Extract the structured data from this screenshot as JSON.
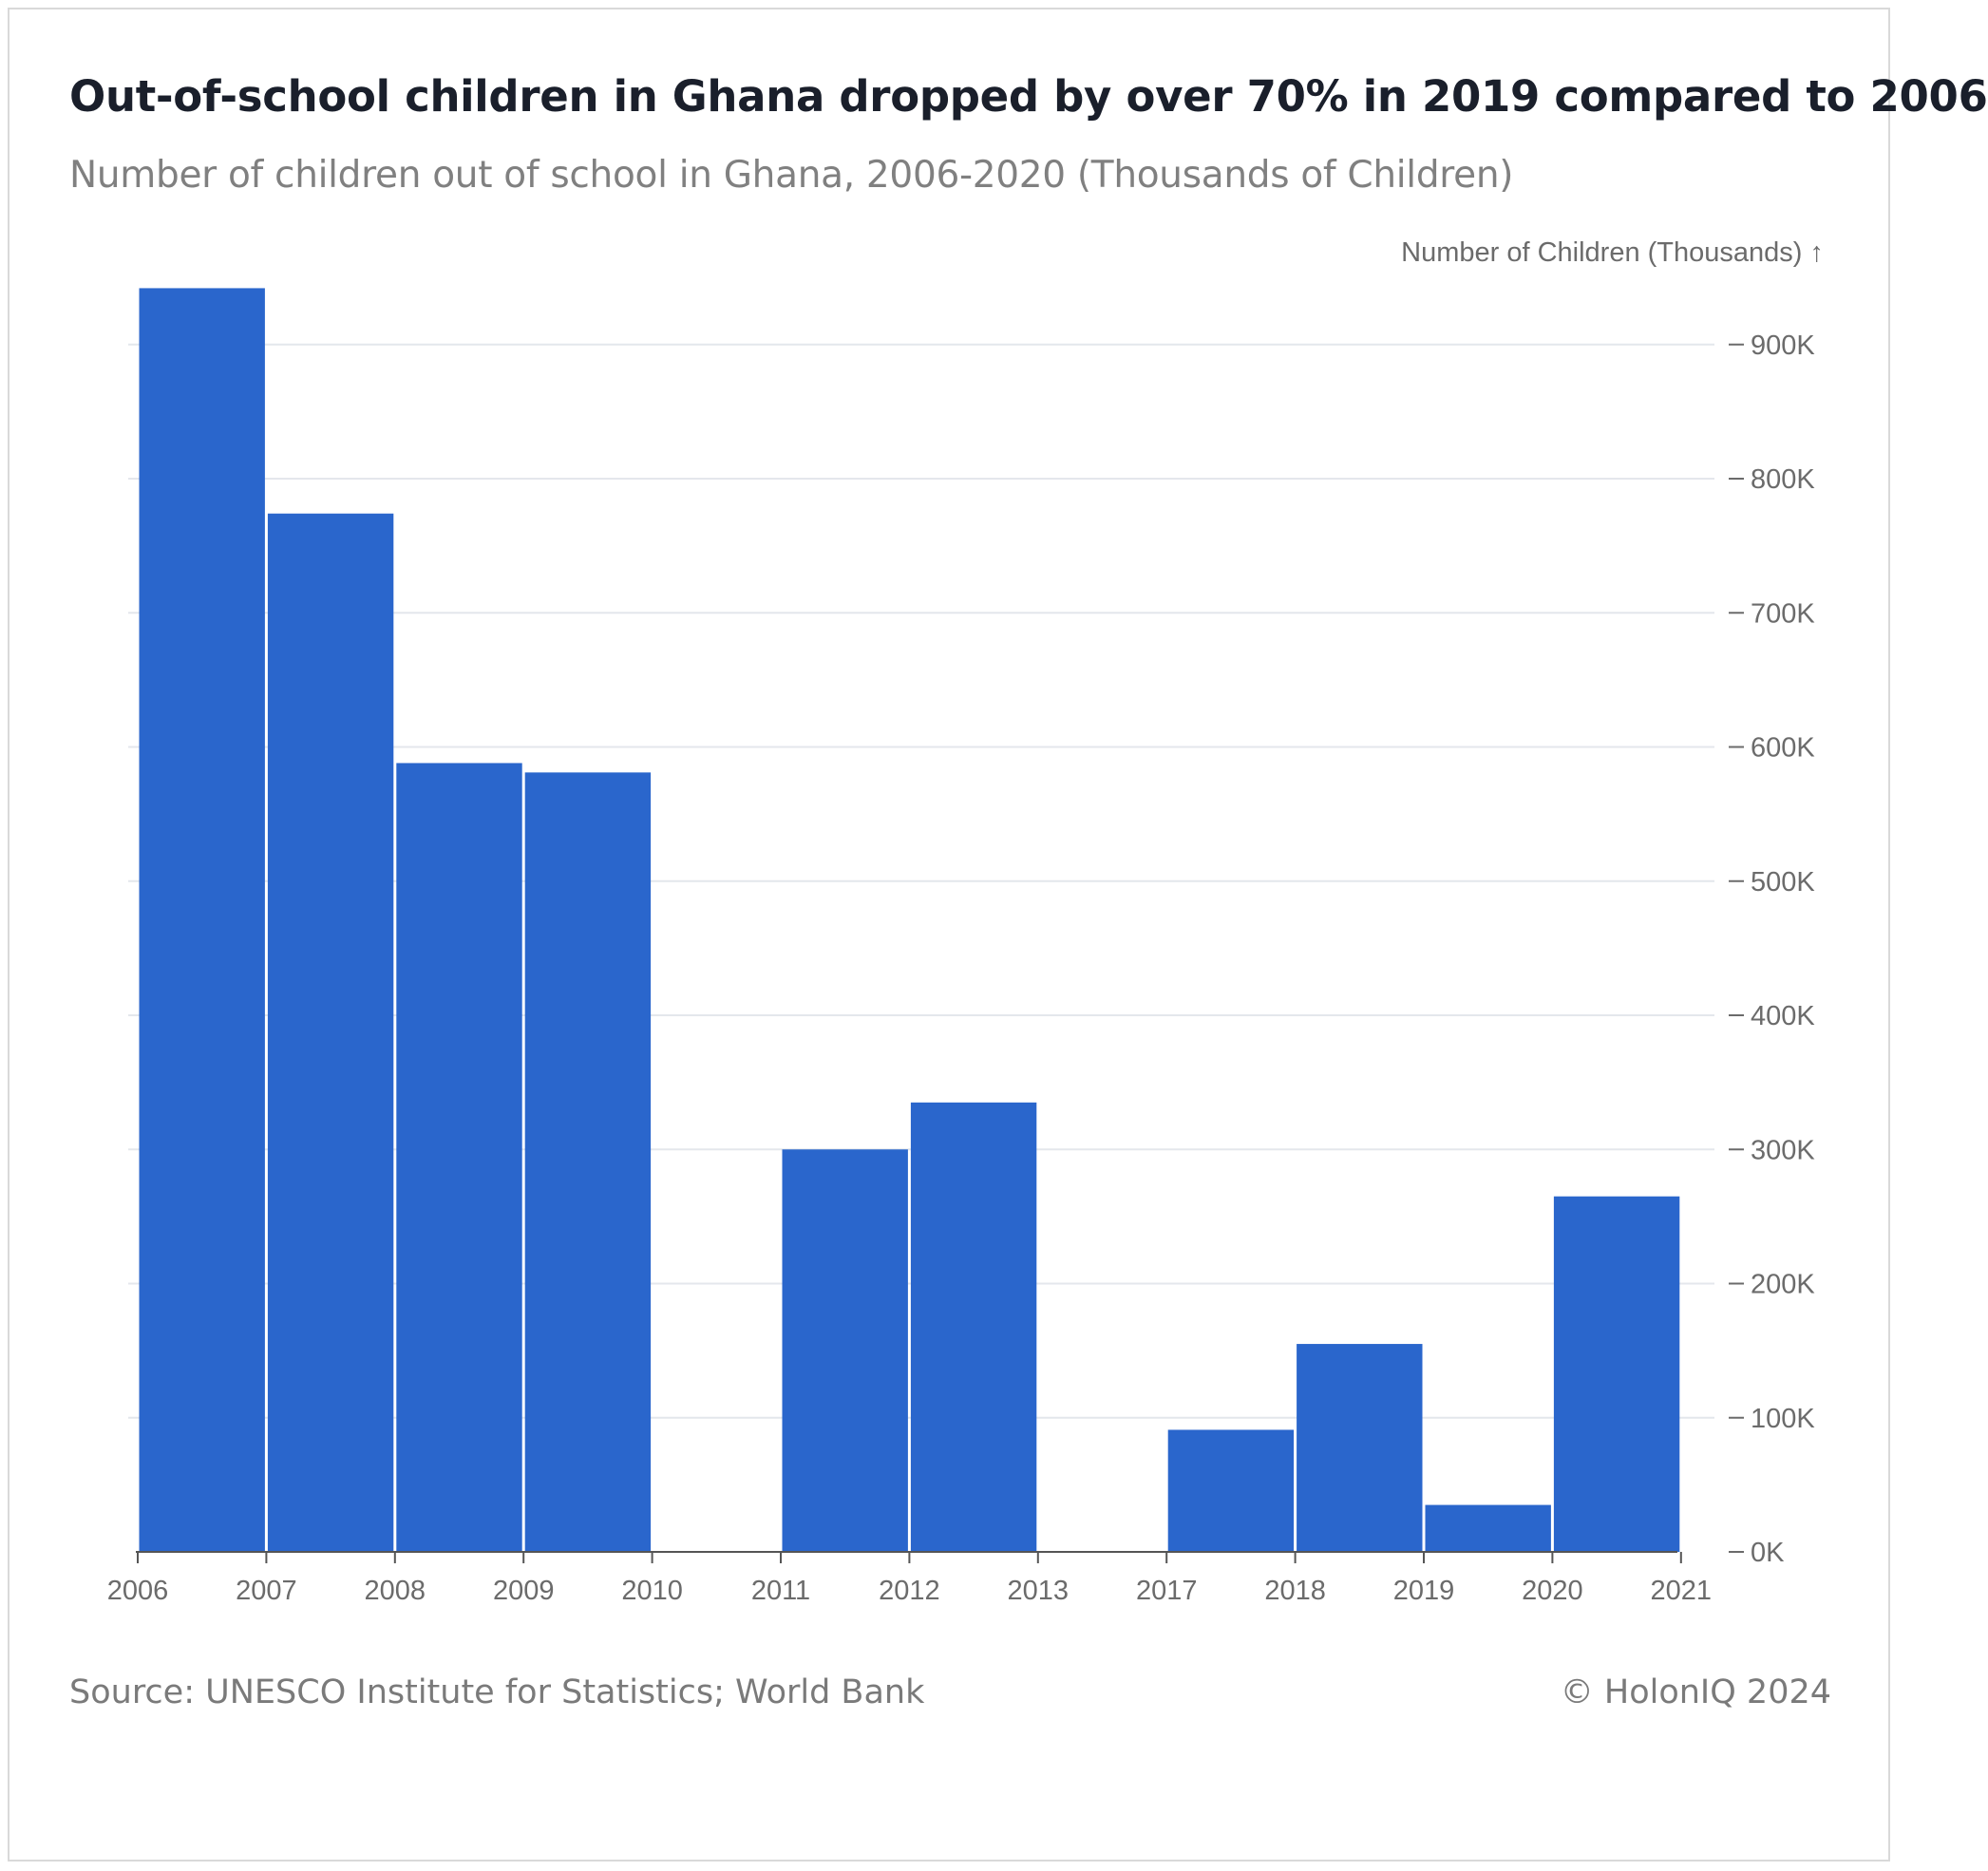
{
  "header": {
    "title": "Out-of-school children in Ghana dropped by over 70% in 2019 compared to 2006",
    "subtitle": "Number of children out of school in Ghana, 2006-2020 (Thousands of Children)"
  },
  "footer": {
    "source": "Source: UNESCO Institute for Statistics; World Bank",
    "copyright": "© HolonIQ 2024"
  },
  "chart_data": {
    "type": "bar",
    "title": "Out-of-school children in Ghana dropped by over 70% in 2019 compared to 2006",
    "subtitle": "Number of children out of school in Ghana, 2006-2020 (Thousands of Children)",
    "ylabel": "Number of Children (Thousands) ↑",
    "xlabel": "",
    "x_tick_labels": [
      "2006",
      "2007",
      "2008",
      "2009",
      "2010",
      "2011",
      "2012",
      "2013",
      "2017",
      "2018",
      "2019",
      "2020",
      "2021"
    ],
    "y_tick_labels": [
      "0K",
      "100K",
      "200K",
      "300K",
      "400K",
      "500K",
      "600K",
      "700K",
      "800K",
      "900K"
    ],
    "ylim": [
      0,
      950
    ],
    "y_axis_position": "right",
    "grid": true,
    "bar_color": "#2a66cc",
    "bars": [
      {
        "start": "2006",
        "end": "2007",
        "value": 942
      },
      {
        "start": "2007",
        "end": "2008",
        "value": 774
      },
      {
        "start": "2008",
        "end": "2009",
        "value": 588
      },
      {
        "start": "2009",
        "end": "2010",
        "value": 581
      },
      {
        "start": "2011",
        "end": "2012",
        "value": 300
      },
      {
        "start": "2012",
        "end": "2013",
        "value": 335
      },
      {
        "start": "2017",
        "end": "2018",
        "value": 91
      },
      {
        "start": "2018",
        "end": "2019",
        "value": 155
      },
      {
        "start": "2019",
        "end": "2020",
        "value": 35
      },
      {
        "start": "2020",
        "end": "2021",
        "value": 265
      }
    ]
  }
}
